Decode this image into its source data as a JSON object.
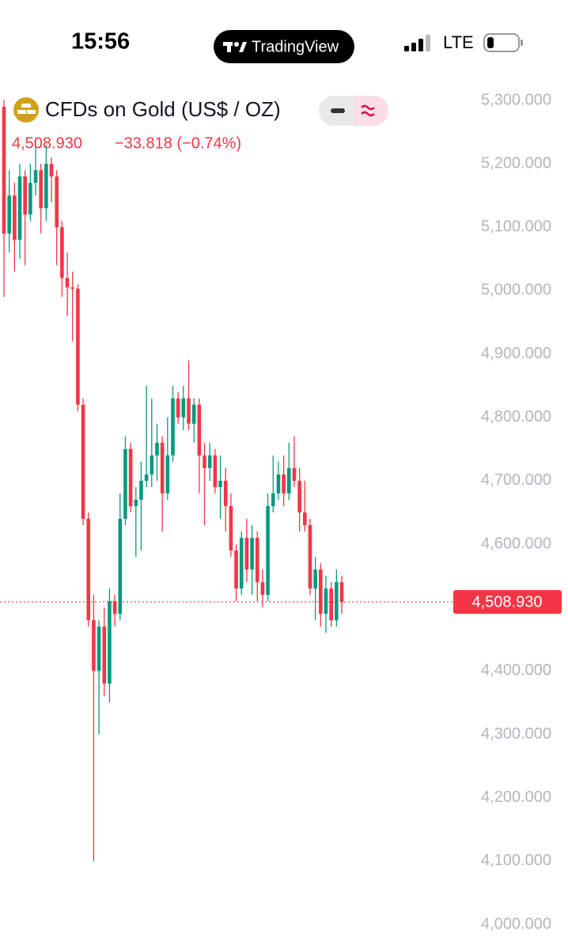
{
  "status_bar": {
    "time": "15:56",
    "app": "TradingView",
    "network": "LTE"
  },
  "chart_data": {
    "type": "candlestick",
    "title": "CFDs on Gold (US$ / OZ)",
    "last_price": {
      "value": 4508.93,
      "label": "4,508.930"
    },
    "change": "−33.818 (−0.74%)",
    "up_color": "#089981",
    "down_color": "#f23645",
    "ylim": [
      4000,
      5300
    ],
    "yticks": [
      {
        "value": 5300,
        "label": "5,300.000"
      },
      {
        "value": 5200,
        "label": "5,200.000"
      },
      {
        "value": 5100,
        "label": "5,100.000"
      },
      {
        "value": 5000,
        "label": "5,000.000"
      },
      {
        "value": 4900,
        "label": "4,900.000"
      },
      {
        "value": 4800,
        "label": "4,800.000"
      },
      {
        "value": 4700,
        "label": "4,700.000"
      },
      {
        "value": 4600,
        "label": "4,600.000"
      },
      {
        "value": 4500,
        "label": "4,500.000"
      },
      {
        "value": 4400,
        "label": "4,400.000"
      },
      {
        "value": 4300,
        "label": "4,300.000"
      },
      {
        "value": 4200,
        "label": "4,200.000"
      },
      {
        "value": 4100,
        "label": "4,100.000"
      },
      {
        "value": 4000,
        "label": "4,000.000"
      }
    ],
    "open": [
      5290,
      5090,
      5150,
      5080,
      5180,
      5120,
      5170,
      5190,
      5130,
      5200,
      5180,
      5100,
      5020,
      5005,
      5003,
      4820,
      4640,
      4480,
      4400,
      4470,
      4380,
      4510,
      4490,
      4640,
      4750,
      4660,
      4670,
      4700,
      4710,
      4740,
      4760,
      4680,
      4740,
      4830,
      4800,
      4830,
      4790,
      4820,
      4740,
      4720,
      4740,
      4690,
      4700,
      4660,
      4590,
      4530,
      4610,
      4560,
      4610,
      4540,
      4520,
      4660,
      4680,
      4710,
      4680,
      4720,
      4700,
      4650,
      4630,
      4530,
      4560,
      4490,
      4530,
      4480,
      4540
    ],
    "high": [
      5300,
      5190,
      5170,
      5200,
      5190,
      5200,
      5240,
      5200,
      5230,
      5210,
      5190,
      5110,
      5060,
      5030,
      5010,
      4830,
      4650,
      4520,
      4480,
      4500,
      4530,
      4520,
      4680,
      4770,
      4760,
      4690,
      4730,
      4850,
      4830,
      4790,
      4770,
      4800,
      4850,
      4840,
      4850,
      4890,
      4830,
      4830,
      4760,
      4760,
      4750,
      4740,
      4720,
      4680,
      4600,
      4620,
      4640,
      4630,
      4620,
      4560,
      4680,
      4740,
      4730,
      4740,
      4760,
      4770,
      4720,
      4700,
      4640,
      4580,
      4570,
      4550,
      4540,
      4560,
      4550
    ],
    "low": [
      4990,
      5060,
      5030,
      5050,
      5040,
      5110,
      5150,
      5090,
      5110,
      5140,
      5040,
      4990,
      4960,
      4920,
      4810,
      4630,
      4470,
      4100,
      4300,
      4360,
      4350,
      4470,
      4480,
      4630,
      4650,
      4580,
      4590,
      4690,
      4690,
      4700,
      4620,
      4670,
      4730,
      4790,
      4780,
      4780,
      4760,
      4680,
      4630,
      4700,
      4680,
      4640,
      4620,
      4580,
      4510,
      4520,
      4540,
      4520,
      4510,
      4500,
      4510,
      4650,
      4670,
      4660,
      4670,
      4690,
      4620,
      4620,
      4520,
      4480,
      4470,
      4460,
      4470,
      4470,
      4490
    ],
    "close": [
      5090,
      5150,
      5080,
      5180,
      5120,
      5170,
      5190,
      5130,
      5200,
      5180,
      5100,
      5020,
      5005,
      5003,
      4820,
      4640,
      4480,
      4400,
      4470,
      4380,
      4510,
      4490,
      4640,
      4750,
      4660,
      4670,
      4700,
      4710,
      4740,
      4760,
      4680,
      4740,
      4830,
      4800,
      4830,
      4790,
      4820,
      4740,
      4720,
      4740,
      4690,
      4700,
      4660,
      4590,
      4530,
      4610,
      4560,
      4610,
      4540,
      4520,
      4660,
      4680,
      4710,
      4680,
      4720,
      4700,
      4650,
      4630,
      4530,
      4560,
      4490,
      4530,
      4480,
      4540,
      4508.93
    ]
  }
}
